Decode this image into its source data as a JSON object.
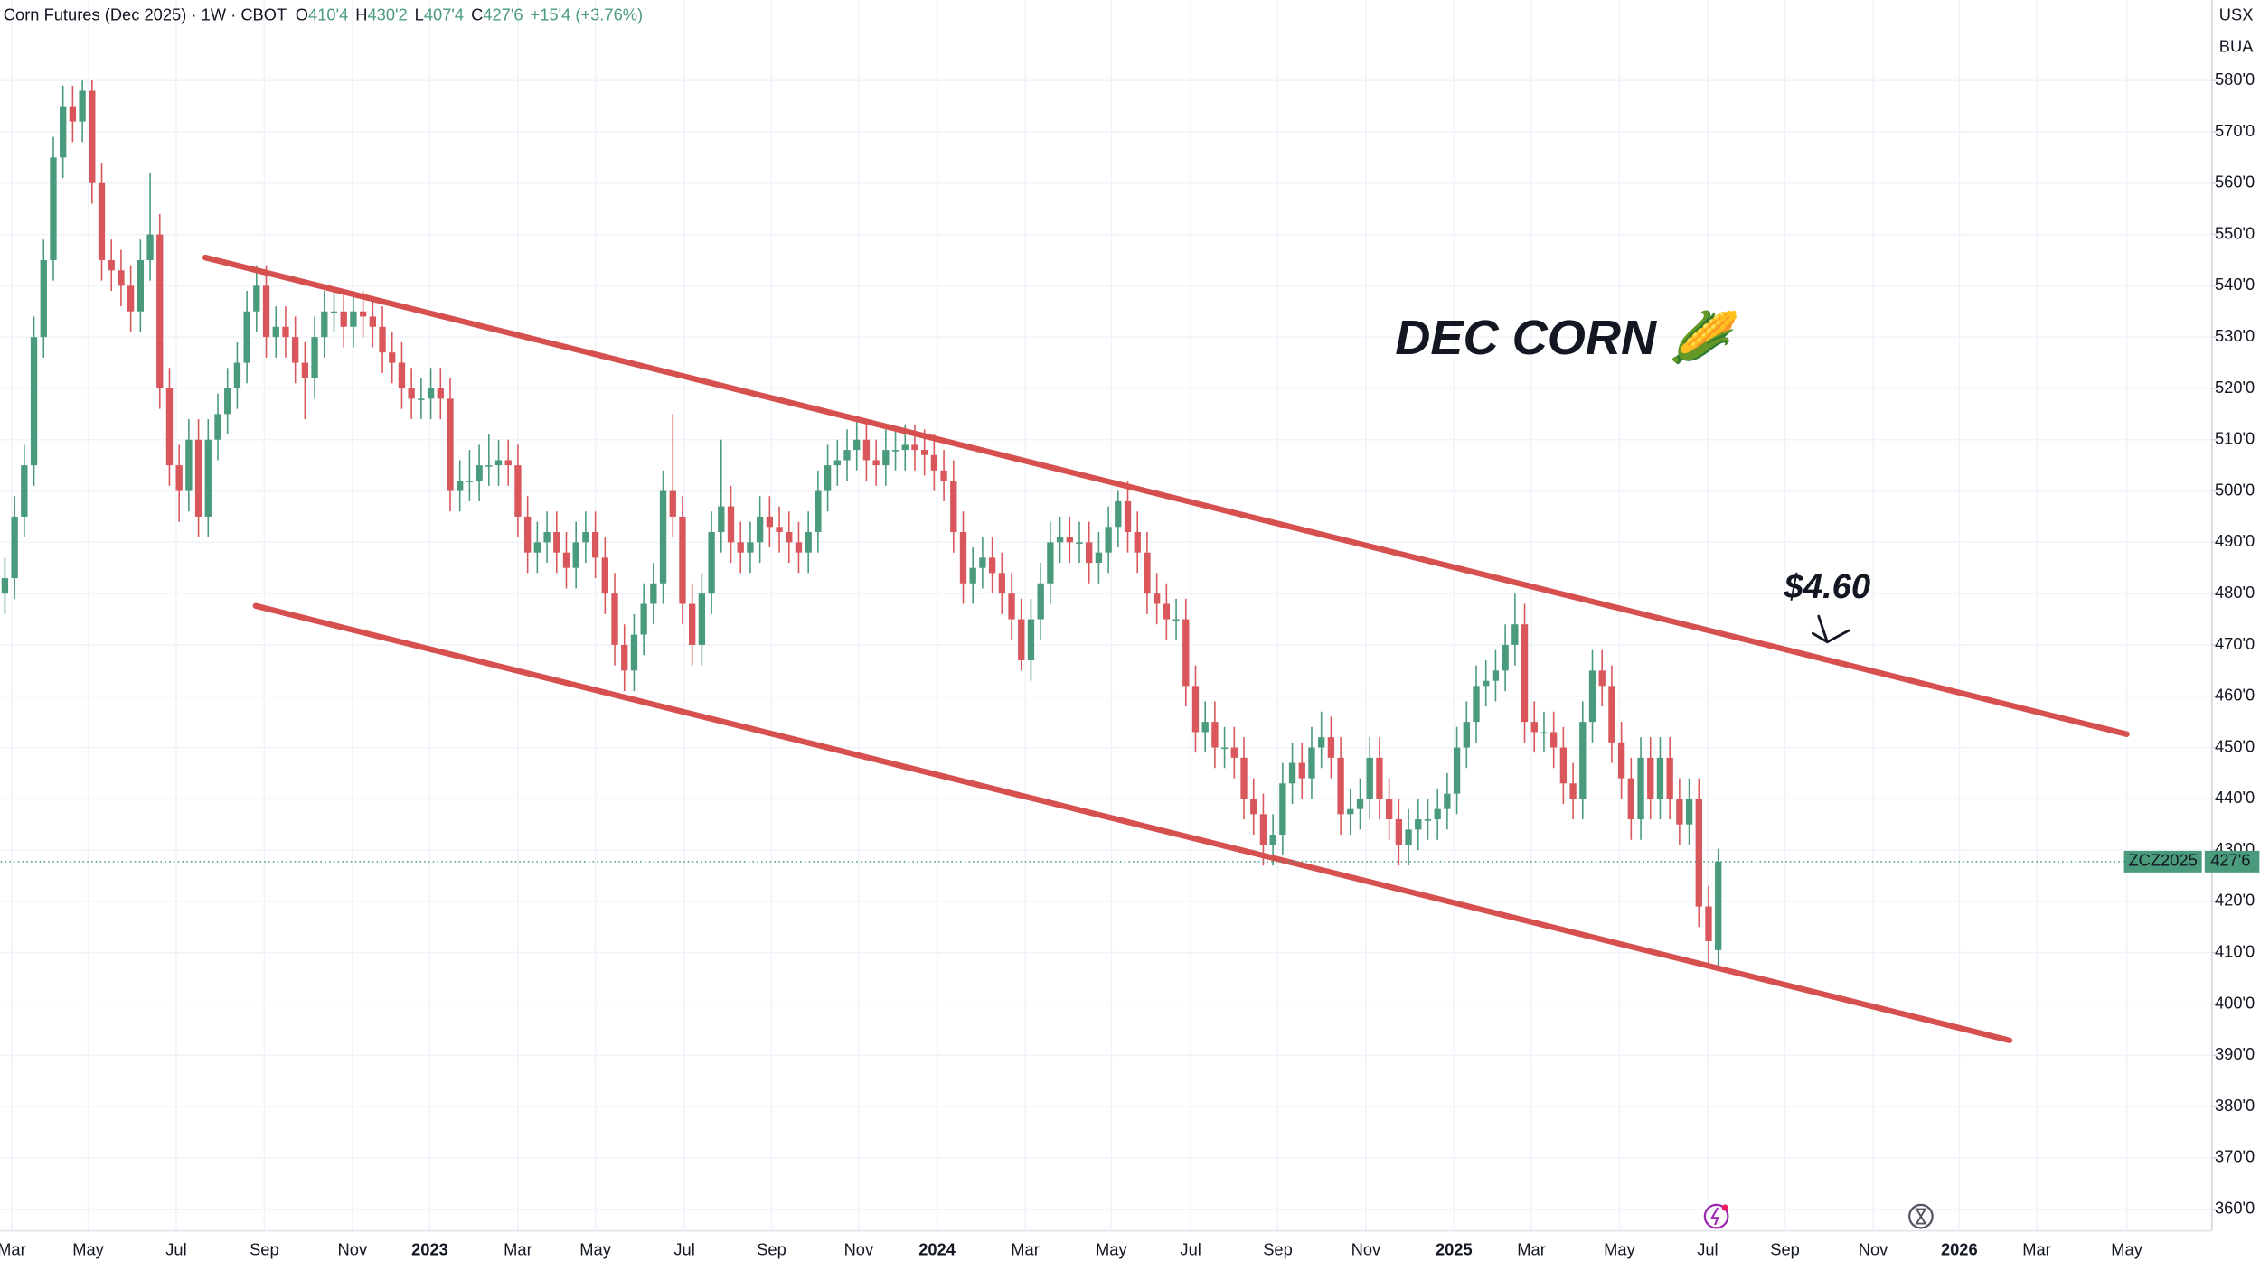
{
  "chart_data": {
    "type": "candlestick",
    "title": "Corn Futures (Dec 2025) · 1W · CBOT",
    "ohlc_legend": [
      {
        "key": "O",
        "value": "410'4"
      },
      {
        "key": "H",
        "value": "430'2"
      },
      {
        "key": "L",
        "value": "407'4"
      },
      {
        "key": "C",
        "value": "427'6"
      }
    ],
    "change": "+15'4 (+3.76%)",
    "unit_labels": [
      "USX",
      "BUA"
    ],
    "annotations": [
      "DEC CORN 🌽",
      "$4.60"
    ],
    "price_tag": {
      "symbol": "ZCZ2025",
      "label": "427'6"
    },
    "up_color": "#4a9b7c",
    "down_color": "#d9575b",
    "trendline_color": "#d5504f",
    "grid": true,
    "xlim": [
      -0.45,
      228
    ],
    "ylim": [
      355.8,
      595.7
    ],
    "xticks": [
      {
        "value": 0.7,
        "label": "Mar"
      },
      {
        "value": 8.6,
        "label": "May"
      },
      {
        "value": 17.7,
        "label": "Jul"
      },
      {
        "value": 26.8,
        "label": "Sep"
      },
      {
        "value": 35.9,
        "label": "Nov"
      },
      {
        "value": 43.9,
        "label": "2023"
      },
      {
        "value": 53.0,
        "label": "Mar"
      },
      {
        "value": 61.0,
        "label": "May"
      },
      {
        "value": 70.2,
        "label": "Jul"
      },
      {
        "value": 79.2,
        "label": "Sep"
      },
      {
        "value": 88.2,
        "label": "Nov"
      },
      {
        "value": 96.3,
        "label": "2024"
      },
      {
        "value": 105.4,
        "label": "Mar"
      },
      {
        "value": 114.3,
        "label": "May"
      },
      {
        "value": 122.5,
        "label": "Jul"
      },
      {
        "value": 131.5,
        "label": "Sep"
      },
      {
        "value": 140.6,
        "label": "Nov"
      },
      {
        "value": 149.7,
        "label": "2025"
      },
      {
        "value": 157.7,
        "label": "Mar"
      },
      {
        "value": 166.8,
        "label": "May"
      },
      {
        "value": 175.9,
        "label": "Jul"
      },
      {
        "value": 183.9,
        "label": "Sep"
      },
      {
        "value": 193.0,
        "label": "Nov"
      },
      {
        "value": 201.9,
        "label": "2026"
      },
      {
        "value": 209.9,
        "label": "Mar"
      },
      {
        "value": 219.2,
        "label": "May"
      }
    ],
    "yticks": [
      {
        "value": 360,
        "label": "360'0"
      },
      {
        "value": 370,
        "label": "370'0"
      },
      {
        "value": 380,
        "label": "380'0"
      },
      {
        "value": 390,
        "label": "390'0"
      },
      {
        "value": 400,
        "label": "400'0"
      },
      {
        "value": 410,
        "label": "410'0"
      },
      {
        "value": 420,
        "label": "420'0"
      },
      {
        "value": 430,
        "label": "430'0"
      },
      {
        "value": 440,
        "label": "440'0"
      },
      {
        "value": 450,
        "label": "450'0"
      },
      {
        "value": 460,
        "label": "460'0"
      },
      {
        "value": 470,
        "label": "470'0"
      },
      {
        "value": 480,
        "label": "480'0"
      },
      {
        "value": 490,
        "label": "490'0"
      },
      {
        "value": 500,
        "label": "500'0"
      },
      {
        "value": 510,
        "label": "510'0"
      },
      {
        "value": 520,
        "label": "520'0"
      },
      {
        "value": 530,
        "label": "530'0"
      },
      {
        "value": 540,
        "label": "540'0"
      },
      {
        "value": 550,
        "label": "550'0"
      },
      {
        "value": 560,
        "label": "560'0"
      },
      {
        "value": 570,
        "label": "570'0"
      },
      {
        "value": 580,
        "label": "580'0"
      }
    ],
    "trendlines": [
      {
        "points": [
          [
            20.7,
            545.5
          ],
          [
            219.2,
            452.6
          ]
        ]
      },
      {
        "points": [
          [
            25.9,
            477.6
          ],
          [
            207.1,
            392.9
          ]
        ]
      }
    ],
    "candles": [
      [
        480,
        487,
        476,
        483
      ],
      [
        483,
        499,
        479,
        495
      ],
      [
        495,
        509,
        491,
        505
      ],
      [
        505,
        534,
        501,
        530
      ],
      [
        530,
        549,
        526,
        545
      ],
      [
        545,
        569,
        541,
        565
      ],
      [
        565,
        579,
        561,
        575
      ],
      [
        575,
        579,
        568,
        572
      ],
      [
        572,
        580,
        568,
        578
      ],
      [
        578,
        580,
        556,
        560
      ],
      [
        560,
        564,
        541,
        545
      ],
      [
        545,
        549,
        539,
        543
      ],
      [
        543,
        547,
        536,
        540
      ],
      [
        540,
        544,
        531,
        535
      ],
      [
        535,
        549,
        531,
        545
      ],
      [
        545,
        562,
        541,
        550
      ],
      [
        550,
        554,
        516,
        520
      ],
      [
        520,
        524,
        501,
        505
      ],
      [
        505,
        509,
        494,
        500
      ],
      [
        500,
        514,
        496,
        510
      ],
      [
        510,
        514,
        491,
        495
      ],
      [
        495,
        514,
        491,
        510
      ],
      [
        510,
        519,
        506,
        515
      ],
      [
        515,
        524,
        511,
        520
      ],
      [
        520,
        529,
        516,
        525
      ],
      [
        525,
        539,
        521,
        535
      ],
      [
        535,
        544,
        531,
        540
      ],
      [
        540,
        544,
        526,
        530
      ],
      [
        530,
        536,
        526,
        532
      ],
      [
        532,
        536,
        526,
        530
      ],
      [
        530,
        534,
        521,
        525
      ],
      [
        525,
        529,
        514,
        522
      ],
      [
        522,
        534,
        518,
        530
      ],
      [
        530,
        539,
        526,
        535
      ],
      [
        535,
        539,
        531,
        535
      ],
      [
        535,
        539,
        528,
        532
      ],
      [
        532,
        539,
        528,
        535
      ],
      [
        535,
        539,
        530,
        534
      ],
      [
        534,
        538,
        528,
        532
      ],
      [
        532,
        536,
        523,
        527
      ],
      [
        527,
        531,
        521,
        525
      ],
      [
        525,
        529,
        516,
        520
      ],
      [
        520,
        524,
        514,
        518
      ],
      [
        518,
        522,
        514,
        518
      ],
      [
        518,
        524,
        514,
        520
      ],
      [
        520,
        524,
        514,
        518
      ],
      [
        518,
        522,
        496,
        500
      ],
      [
        500,
        506,
        496,
        502
      ],
      [
        502,
        508,
        498,
        502
      ],
      [
        502,
        509,
        498,
        505
      ],
      [
        505,
        511,
        501,
        505
      ],
      [
        505,
        510,
        501,
        506
      ],
      [
        506,
        510,
        501,
        505
      ],
      [
        505,
        509,
        491,
        495
      ],
      [
        495,
        499,
        484,
        488
      ],
      [
        488,
        494,
        484,
        490
      ],
      [
        490,
        496,
        486,
        492
      ],
      [
        492,
        496,
        484,
        488
      ],
      [
        488,
        492,
        481,
        485
      ],
      [
        485,
        494,
        481,
        490
      ],
      [
        490,
        496,
        486,
        492
      ],
      [
        492,
        496,
        483,
        487
      ],
      [
        487,
        491,
        476,
        480
      ],
      [
        480,
        484,
        466,
        470
      ],
      [
        470,
        474,
        461,
        465
      ],
      [
        465,
        476,
        461,
        472
      ],
      [
        472,
        482,
        468,
        478
      ],
      [
        478,
        486,
        474,
        482
      ],
      [
        482,
        504,
        478,
        500
      ],
      [
        500,
        515,
        491,
        495
      ],
      [
        495,
        499,
        474,
        478
      ],
      [
        478,
        482,
        466,
        470
      ],
      [
        470,
        484,
        466,
        480
      ],
      [
        480,
        496,
        476,
        492
      ],
      [
        492,
        510,
        488,
        497
      ],
      [
        497,
        501,
        486,
        490
      ],
      [
        490,
        494,
        484,
        488
      ],
      [
        488,
        494,
        484,
        490
      ],
      [
        490,
        499,
        486,
        495
      ],
      [
        495,
        499,
        489,
        493
      ],
      [
        493,
        497,
        488,
        492
      ],
      [
        492,
        496,
        486,
        490
      ],
      [
        490,
        494,
        484,
        488
      ],
      [
        488,
        496,
        484,
        492
      ],
      [
        492,
        504,
        488,
        500
      ],
      [
        500,
        509,
        496,
        505
      ],
      [
        505,
        510,
        501,
        506
      ],
      [
        506,
        512,
        502,
        508
      ],
      [
        508,
        514,
        504,
        510
      ],
      [
        510,
        514,
        502,
        506
      ],
      [
        506,
        510,
        501,
        505
      ],
      [
        505,
        512,
        501,
        508
      ],
      [
        508,
        512,
        504,
        508
      ],
      [
        508,
        513,
        504,
        509
      ],
      [
        509,
        513,
        504,
        508
      ],
      [
        508,
        512,
        503,
        507
      ],
      [
        507,
        511,
        500,
        504
      ],
      [
        504,
        508,
        498,
        502
      ],
      [
        502,
        506,
        488,
        492
      ],
      [
        492,
        496,
        478,
        482
      ],
      [
        482,
        489,
        478,
        485
      ],
      [
        485,
        491,
        481,
        487
      ],
      [
        487,
        491,
        480,
        484
      ],
      [
        484,
        488,
        476,
        480
      ],
      [
        480,
        484,
        471,
        475
      ],
      [
        475,
        479,
        465,
        467
      ],
      [
        467,
        479,
        463,
        475
      ],
      [
        475,
        486,
        471,
        482
      ],
      [
        482,
        494,
        478,
        490
      ],
      [
        490,
        495,
        486,
        491
      ],
      [
        491,
        495,
        486,
        490
      ],
      [
        490,
        494,
        486,
        490
      ],
      [
        490,
        494,
        482,
        486
      ],
      [
        486,
        492,
        482,
        488
      ],
      [
        488,
        497,
        484,
        493
      ],
      [
        493,
        500,
        489,
        498
      ],
      [
        498,
        502,
        488,
        492
      ],
      [
        492,
        496,
        484,
        488
      ],
      [
        488,
        492,
        476,
        480
      ],
      [
        480,
        484,
        474,
        478
      ],
      [
        478,
        482,
        471,
        475
      ],
      [
        475,
        479,
        471,
        475
      ],
      [
        475,
        479,
        458,
        462
      ],
      [
        462,
        466,
        449,
        453
      ],
      [
        453,
        459,
        449,
        455
      ],
      [
        455,
        459,
        446,
        450
      ],
      [
        450,
        454,
        446,
        450
      ],
      [
        450,
        454,
        444,
        448
      ],
      [
        448,
        452,
        436,
        440
      ],
      [
        440,
        444,
        433,
        437
      ],
      [
        437,
        441,
        427,
        431
      ],
      [
        431,
        437,
        427,
        433
      ],
      [
        433,
        447,
        429,
        443
      ],
      [
        443,
        451,
        439,
        447
      ],
      [
        447,
        451,
        440,
        444
      ],
      [
        444,
        454,
        440,
        450
      ],
      [
        450,
        457,
        446,
        452
      ],
      [
        452,
        456,
        444,
        448
      ],
      [
        448,
        452,
        433,
        437
      ],
      [
        437,
        442,
        433,
        438
      ],
      [
        438,
        444,
        434,
        440
      ],
      [
        440,
        452,
        436,
        448
      ],
      [
        448,
        452,
        436,
        440
      ],
      [
        440,
        444,
        432,
        436
      ],
      [
        436,
        440,
        427,
        431
      ],
      [
        431,
        438,
        427,
        434
      ],
      [
        434,
        440,
        430,
        436
      ],
      [
        436,
        440,
        432,
        436
      ],
      [
        436,
        442,
        432,
        438
      ],
      [
        438,
        445,
        434,
        441
      ],
      [
        441,
        454,
        437,
        450
      ],
      [
        450,
        459,
        446,
        455
      ],
      [
        455,
        466,
        451,
        462
      ],
      [
        462,
        467,
        458,
        463
      ],
      [
        463,
        469,
        459,
        465
      ],
      [
        465,
        474,
        461,
        470
      ],
      [
        470,
        480,
        466,
        474
      ],
      [
        474,
        478,
        451,
        455
      ],
      [
        455,
        459,
        449,
        453
      ],
      [
        453,
        457,
        449,
        453
      ],
      [
        453,
        457,
        446,
        450
      ],
      [
        450,
        454,
        439,
        443
      ],
      [
        443,
        447,
        436,
        440
      ],
      [
        440,
        459,
        436,
        455
      ],
      [
        455,
        469,
        451,
        465
      ],
      [
        465,
        469,
        458,
        462
      ],
      [
        462,
        466,
        447,
        451
      ],
      [
        451,
        455,
        440,
        444
      ],
      [
        444,
        448,
        432,
        436
      ],
      [
        436,
        452,
        432,
        448
      ],
      [
        448,
        452,
        436,
        440
      ],
      [
        440,
        452,
        436,
        448
      ],
      [
        448,
        452,
        436,
        440
      ],
      [
        440,
        444,
        431,
        435
      ],
      [
        435,
        444,
        431,
        440
      ],
      [
        440,
        444,
        415,
        419
      ],
      [
        419,
        423,
        408,
        412.25
      ],
      [
        410.5,
        430.25,
        407.5,
        427.75
      ]
    ]
  }
}
